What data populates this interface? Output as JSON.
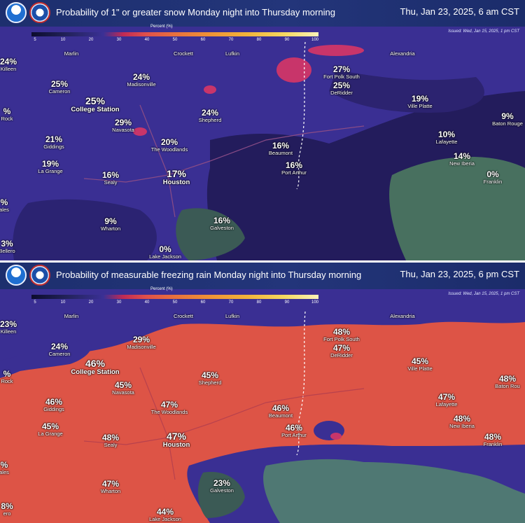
{
  "legend": {
    "title": "Percent (%)",
    "ticks": [
      "5",
      "10",
      "20",
      "30",
      "40",
      "50",
      "60",
      "70",
      "80",
      "90",
      "100"
    ]
  },
  "panels": [
    {
      "title": "Probability of 1\" or greater snow Monday night into Thursday morning",
      "datetime": "Thu, Jan 23, 2025, 6 am CST",
      "issued": "Issued: Wed, Jan 15, 2025, 1 pm CST",
      "colors": {
        "base": "#3a2f93",
        "dark": "#211a55",
        "pink": "#c8356a",
        "sea": "#6a8a78"
      },
      "cities": [
        {
          "pct": "",
          "name": "Marlin"
        },
        {
          "pct": "",
          "name": "Crockett"
        },
        {
          "pct": "",
          "name": "Lufkin"
        },
        {
          "pct": "",
          "name": "Alexandria"
        },
        {
          "pct": "24%",
          "name": "Killeen"
        },
        {
          "pct": "25%",
          "name": "Cameron"
        },
        {
          "pct": "24%",
          "name": "Madisonville"
        },
        {
          "pct": "27%",
          "name": "Fort Polk South"
        },
        {
          "pct": "25%",
          "name": "DeRidder"
        },
        {
          "pct": "25%",
          "name": "College Station"
        },
        {
          "pct": "%",
          "name": "Rock"
        },
        {
          "pct": "29%",
          "name": "Navasota"
        },
        {
          "pct": "24%",
          "name": "Shepherd"
        },
        {
          "pct": "19%",
          "name": "Ville Platte"
        },
        {
          "pct": "9%",
          "name": "Baton Rouge"
        },
        {
          "pct": "21%",
          "name": "Giddings"
        },
        {
          "pct": "20%",
          "name": "The Woodlands"
        },
        {
          "pct": "16%",
          "name": "Beaumont"
        },
        {
          "pct": "10%",
          "name": "Lafayette"
        },
        {
          "pct": "19%",
          "name": "La Grange"
        },
        {
          "pct": "16%",
          "name": "Sealy"
        },
        {
          "pct": "17%",
          "name": "Houston"
        },
        {
          "pct": "16%",
          "name": "Port Arthur"
        },
        {
          "pct": "14%",
          "name": "New Iberia"
        },
        {
          "pct": "0%",
          "name": "Franklin"
        },
        {
          "pct": "%",
          "name": "ales"
        },
        {
          "pct": "9%",
          "name": "Wharton"
        },
        {
          "pct": "16%",
          "name": "Galveston"
        },
        {
          "pct": "3%",
          "name": "Bellero"
        },
        {
          "pct": "0%",
          "name": "Lake Jackson"
        }
      ]
    },
    {
      "title": "Probability of measurable freezing rain Monday night into Thursday morning",
      "datetime": "Thu, Jan 23, 2025, 6 pm CST",
      "issued": "Issued: Wed, Jan 15, 2025, 1 pm CST",
      "colors": {
        "base": "#dd5446",
        "dark": "#3a2f93",
        "pink": "#3a2f93",
        "sea": "#4f7873"
      },
      "cities": [
        {
          "pct": "",
          "name": "Marlin"
        },
        {
          "pct": "",
          "name": "Crockett"
        },
        {
          "pct": "",
          "name": "Lufkin"
        },
        {
          "pct": "",
          "name": "Alexandria"
        },
        {
          "pct": "23%",
          "name": "Killeen"
        },
        {
          "pct": "24%",
          "name": "Cameron"
        },
        {
          "pct": "29%",
          "name": "Madisonville"
        },
        {
          "pct": "48%",
          "name": "Fort Polk South"
        },
        {
          "pct": "47%",
          "name": "DeRidder"
        },
        {
          "pct": "46%",
          "name": "College Station"
        },
        {
          "pct": "%",
          "name": "Rock"
        },
        {
          "pct": "45%",
          "name": "Navasota"
        },
        {
          "pct": "45%",
          "name": "Shepherd"
        },
        {
          "pct": "45%",
          "name": "Ville Platte"
        },
        {
          "pct": "48%",
          "name": "Baton Rou"
        },
        {
          "pct": "46%",
          "name": "Giddings"
        },
        {
          "pct": "47%",
          "name": "The Woodlands"
        },
        {
          "pct": "46%",
          "name": "Beaumont"
        },
        {
          "pct": "47%",
          "name": "Lafayette"
        },
        {
          "pct": "45%",
          "name": "La Grange"
        },
        {
          "pct": "48%",
          "name": "Sealy"
        },
        {
          "pct": "47%",
          "name": "Houston"
        },
        {
          "pct": "46%",
          "name": "Port Arthur"
        },
        {
          "pct": "48%",
          "name": "New Iberia"
        },
        {
          "pct": "48%",
          "name": "Franklin"
        },
        {
          "pct": "%",
          "name": "ales"
        },
        {
          "pct": "47%",
          "name": "Wharton"
        },
        {
          "pct": "23%",
          "name": "Galveston"
        },
        {
          "pct": "8%",
          "name": "ero"
        },
        {
          "pct": "44%",
          "name": "Lake Jackson"
        }
      ]
    }
  ]
}
